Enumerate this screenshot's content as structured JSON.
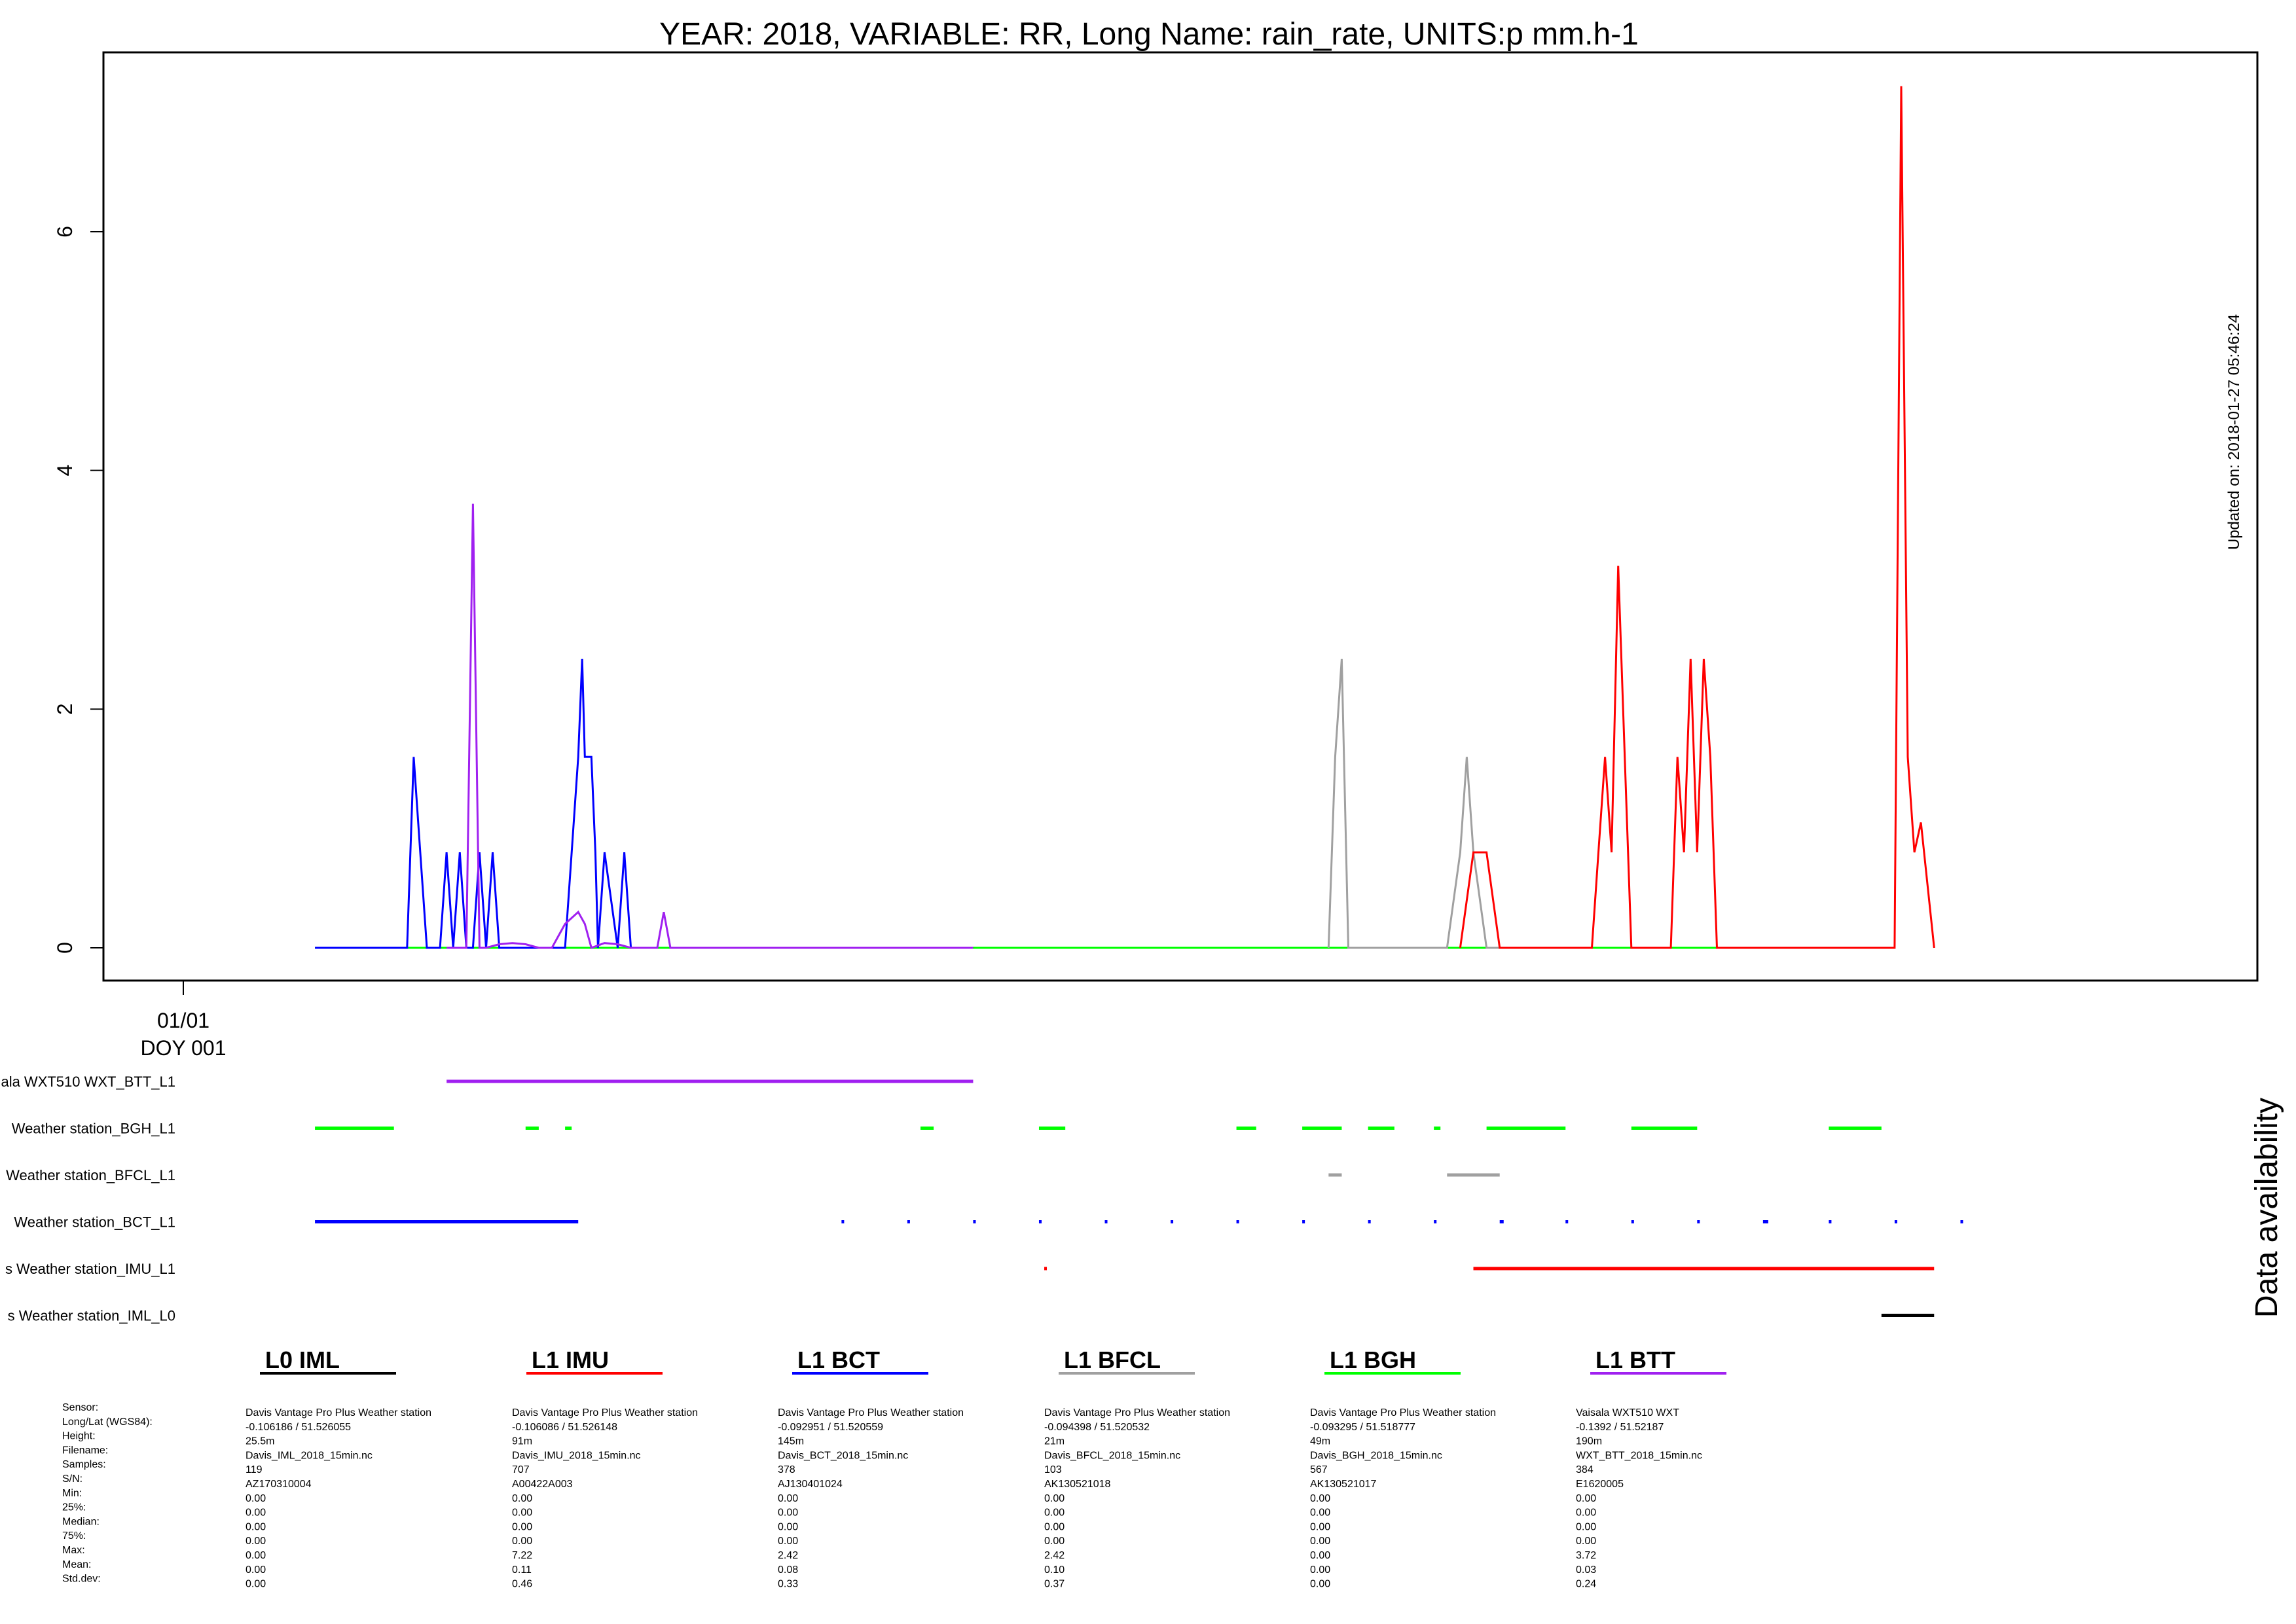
{
  "chart_data": {
    "type": "line",
    "title": "YEAR: 2018, VARIABLE: RR, Long Name: rain_rate, UNITS:p mm.h-1",
    "updated": "Updated on: 2018-01-27 05:46:24",
    "availability_title": "Data availability",
    "x_ticks": [
      {
        "date": "01/01",
        "doy": "DOY 001"
      }
    ],
    "y_ticks": [
      "0",
      "2",
      "4",
      "6"
    ],
    "ylim": [
      -0.3,
      7.5
    ],
    "xlim_doy": [
      0.0,
      14.0
    ],
    "series": [
      {
        "key": "BGH",
        "color": "#00ff00",
        "x": [
          1.0,
          1.6,
          4.9,
          5.5,
          5.6,
          7.1,
          7.2,
          7.5,
          7.9,
          8.1,
          8.3,
          8.5,
          8.9,
          9.4,
          10.0,
          10.8,
          11.5,
          12.3
        ],
        "y": [
          0,
          0,
          0,
          0,
          0,
          0,
          0,
          0,
          0,
          0,
          0,
          0,
          0,
          0,
          0,
          0,
          0,
          0
        ]
      },
      {
        "key": "BCT",
        "color": "#0000ff",
        "x": [
          1.0,
          1.6,
          1.7,
          1.75,
          1.8,
          1.85,
          1.9,
          1.95,
          2.0,
          2.05,
          2.1,
          2.15,
          2.2,
          2.25,
          2.3,
          2.35,
          2.4,
          2.45,
          2.5,
          2.55,
          2.6,
          2.65,
          2.7,
          2.75,
          2.9,
          2.95,
          3.0,
          3.03,
          3.05,
          3.1,
          3.13,
          3.15,
          3.2,
          3.3,
          3.35,
          3.4,
          3.6
        ],
        "y": [
          0,
          0,
          0,
          1.6,
          0.8,
          0,
          0,
          0,
          0.8,
          0,
          0.8,
          0,
          0,
          0.8,
          0,
          0.8,
          0,
          0,
          0,
          0,
          0,
          0,
          0,
          0,
          0,
          0.8,
          1.6,
          2.42,
          1.6,
          1.6,
          0.8,
          0,
          0.8,
          0,
          0.8,
          0,
          0
        ]
      },
      {
        "key": "BTT",
        "color": "#a020f0",
        "x": [
          2.0,
          2.15,
          2.2,
          2.25,
          2.3,
          2.4,
          2.5,
          2.6,
          2.7,
          2.8,
          2.9,
          3.0,
          3.05,
          3.1,
          3.2,
          3.3,
          3.4,
          3.6,
          3.65,
          3.7,
          6.0
        ],
        "y": [
          0,
          0,
          3.72,
          0,
          0,
          0.03,
          0.04,
          0.03,
          0,
          0,
          0.2,
          0.3,
          0.2,
          0,
          0.04,
          0.03,
          0,
          0,
          0.3,
          0,
          0
        ]
      },
      {
        "key": "BFCL",
        "color": "#a0a0a0",
        "x": [
          8.7,
          8.75,
          8.8,
          8.85,
          8.9,
          9.0,
          9.6,
          9.7,
          9.75,
          9.8,
          9.9,
          10.0
        ],
        "y": [
          0,
          1.6,
          2.42,
          0,
          0,
          0,
          0,
          0.8,
          1.6,
          0.8,
          0,
          0
        ]
      },
      {
        "key": "IMU",
        "color": "#ff0000",
        "x": [
          9.7,
          9.8,
          9.85,
          9.9,
          10.0,
          10.7,
          10.75,
          10.8,
          10.85,
          10.9,
          10.95,
          11.0,
          11.3,
          11.35,
          11.4,
          11.45,
          11.5,
          11.55,
          11.6,
          11.65,
          13.0,
          13.05,
          13.1,
          13.15,
          13.2,
          13.3
        ],
        "y": [
          0,
          0.8,
          0.8,
          0.8,
          0,
          0,
          0.8,
          1.6,
          0.8,
          3.2,
          1.6,
          0,
          0,
          1.6,
          0.8,
          2.42,
          0.8,
          2.42,
          1.6,
          0,
          0,
          7.22,
          1.6,
          0.8,
          1.05,
          0
        ]
      }
    ],
    "availability": [
      {
        "label": "ala WXT510 WXT_BTT_L1",
        "color": "#a020f0",
        "segments": [
          [
            2.0,
            6.0
          ]
        ]
      },
      {
        "label": "Weather station_BGH_L1",
        "color": "#00ff00",
        "segments": [
          [
            1.0,
            1.6
          ],
          [
            2.6,
            2.7
          ],
          [
            2.9,
            2.95
          ],
          [
            5.6,
            5.7
          ],
          [
            6.5,
            6.7
          ],
          [
            8.0,
            8.15
          ],
          [
            8.5,
            8.8
          ],
          [
            9.0,
            9.2
          ],
          [
            9.5,
            9.55
          ],
          [
            9.9,
            10.5
          ],
          [
            11.0,
            11.5
          ],
          [
            12.5,
            12.9
          ]
        ]
      },
      {
        "label": "Weather station_BFCL_L1",
        "color": "#a0a0a0",
        "segments": [
          [
            8.7,
            8.8
          ],
          [
            9.6,
            10.0
          ]
        ]
      },
      {
        "label": "Weather station_BCT_L1",
        "color": "#0000ff",
        "segments": [
          [
            1.0,
            3.0
          ],
          [
            5.0,
            5.02
          ],
          [
            5.5,
            5.52
          ],
          [
            6.0,
            6.02
          ],
          [
            6.5,
            6.52
          ],
          [
            7.0,
            7.02
          ],
          [
            7.5,
            7.52
          ],
          [
            8.0,
            8.02
          ],
          [
            8.5,
            8.52
          ],
          [
            9.0,
            9.02
          ],
          [
            9.5,
            9.52
          ],
          [
            10.0,
            10.03
          ],
          [
            10.5,
            10.52
          ],
          [
            11.0,
            11.02
          ],
          [
            11.5,
            11.52
          ],
          [
            12.0,
            12.04
          ],
          [
            12.5,
            12.52
          ],
          [
            13.0,
            13.02
          ],
          [
            13.5,
            13.52
          ]
        ]
      },
      {
        "label": "s Weather station_IMU_L1",
        "color": "#ff0000",
        "segments": [
          [
            6.54,
            6.56
          ],
          [
            9.8,
            13.3
          ]
        ]
      },
      {
        "label": "s Weather station_IML_L0",
        "color": "#000000",
        "segments": [
          [
            12.9,
            13.3
          ]
        ]
      }
    ],
    "legend": [
      {
        "name": "L0 IML",
        "color": "#000000"
      },
      {
        "name": "L1 IMU",
        "color": "#ff0000"
      },
      {
        "name": "L1 BCT",
        "color": "#0000ff"
      },
      {
        "name": "L1 BFCL",
        "color": "#a0a0a0"
      },
      {
        "name": "L1 BGH",
        "color": "#00ff00"
      },
      {
        "name": "L1 BTT",
        "color": "#a020f0"
      }
    ],
    "info_labels": [
      "Sensor:",
      "Long/Lat (WGS84):",
      "Height:",
      "Filename:",
      "Samples:",
      "S/N:",
      "Min:",
      "25%:",
      "Median:",
      "75%:",
      "Max:",
      "Mean:",
      "Std.dev:"
    ],
    "info_columns": [
      [
        "Davis Vantage Pro Plus Weather station",
        "-0.106186 / 51.526055",
        "25.5m",
        "Davis_IML_2018_15min.nc",
        "119",
        "AZ170310004",
        "0.00",
        "0.00",
        "0.00",
        "0.00",
        "0.00",
        "0.00",
        "0.00"
      ],
      [
        "Davis Vantage Pro Plus Weather station",
        "-0.106086 / 51.526148",
        "91m",
        "Davis_IMU_2018_15min.nc",
        "707",
        "A00422A003",
        "0.00",
        "0.00",
        "0.00",
        "0.00",
        "7.22",
        "0.11",
        "0.46"
      ],
      [
        "Davis Vantage Pro Plus Weather station",
        "-0.092951 / 51.520559",
        "145m",
        "Davis_BCT_2018_15min.nc",
        "378",
        "AJ130401024",
        "0.00",
        "0.00",
        "0.00",
        "0.00",
        "2.42",
        "0.08",
        "0.33"
      ],
      [
        "Davis Vantage Pro Plus Weather station",
        "-0.094398 / 51.520532",
        "21m",
        "Davis_BFCL_2018_15min.nc",
        "103",
        "AK130521018",
        "0.00",
        "0.00",
        "0.00",
        "0.00",
        "2.42",
        "0.10",
        "0.37"
      ],
      [
        "Davis Vantage Pro Plus Weather station",
        "-0.093295 / 51.518777",
        "49m",
        "Davis_BGH_2018_15min.nc",
        "567",
        "AK130521017",
        "0.00",
        "0.00",
        "0.00",
        "0.00",
        "0.00",
        "0.00",
        "0.00"
      ],
      [
        "Vaisala WXT510 WXT",
        "-0.1392 / 51.52187",
        "190m",
        "WXT_BTT_2018_15min.nc",
        "384",
        "E1620005",
        "0.00",
        "0.00",
        "0.00",
        "0.00",
        "3.72",
        "0.03",
        "0.24"
      ]
    ]
  }
}
